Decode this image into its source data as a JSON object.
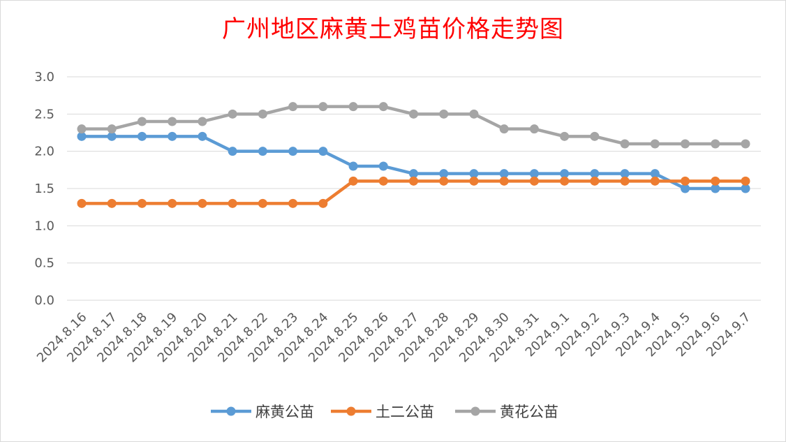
{
  "chart_data": {
    "type": "line",
    "title": "广州地区麻黄土鸡苗价格走势图",
    "xlabel": "",
    "ylabel": "",
    "ylim": [
      0,
      3
    ],
    "yticks": [
      "0.0",
      "0.5",
      "1.0",
      "1.5",
      "2.0",
      "2.5",
      "3.0"
    ],
    "grid": true,
    "legend_position": "bottom",
    "categories": [
      "2024.8.16",
      "2024.8.17",
      "2024.8.18",
      "2024.8.19",
      "2024.8.20",
      "2024.8.21",
      "2024.8.22",
      "2024.8.23",
      "2024.8.24",
      "2024.8.25",
      "2024.8.26",
      "2024.8.27",
      "2024.8.28",
      "2024.8.29",
      "2024.8.30",
      "2024.8.31",
      "2024.9.1",
      "2024.9.2",
      "2024.9.3",
      "2024.9.4",
      "2024.9.5",
      "2024.9.6",
      "2024.9.7"
    ],
    "series": [
      {
        "name": "麻黄公苗",
        "color": "#5b9bd5",
        "values": [
          2.2,
          2.2,
          2.2,
          2.2,
          2.2,
          2.0,
          2.0,
          2.0,
          2.0,
          1.8,
          1.8,
          1.7,
          1.7,
          1.7,
          1.7,
          1.7,
          1.7,
          1.7,
          1.7,
          1.7,
          1.5,
          1.5,
          1.5
        ]
      },
      {
        "name": "土二公苗",
        "color": "#ed7d31",
        "values": [
          1.3,
          1.3,
          1.3,
          1.3,
          1.3,
          1.3,
          1.3,
          1.3,
          1.3,
          1.6,
          1.6,
          1.6,
          1.6,
          1.6,
          1.6,
          1.6,
          1.6,
          1.6,
          1.6,
          1.6,
          1.6,
          1.6,
          1.6
        ]
      },
      {
        "name": "黄花公苗",
        "color": "#a5a5a5",
        "values": [
          2.3,
          2.3,
          2.4,
          2.4,
          2.4,
          2.5,
          2.5,
          2.6,
          2.6,
          2.6,
          2.6,
          2.5,
          2.5,
          2.5,
          2.3,
          2.3,
          2.2,
          2.2,
          2.1,
          2.1,
          2.1,
          2.1,
          2.1
        ]
      }
    ]
  }
}
